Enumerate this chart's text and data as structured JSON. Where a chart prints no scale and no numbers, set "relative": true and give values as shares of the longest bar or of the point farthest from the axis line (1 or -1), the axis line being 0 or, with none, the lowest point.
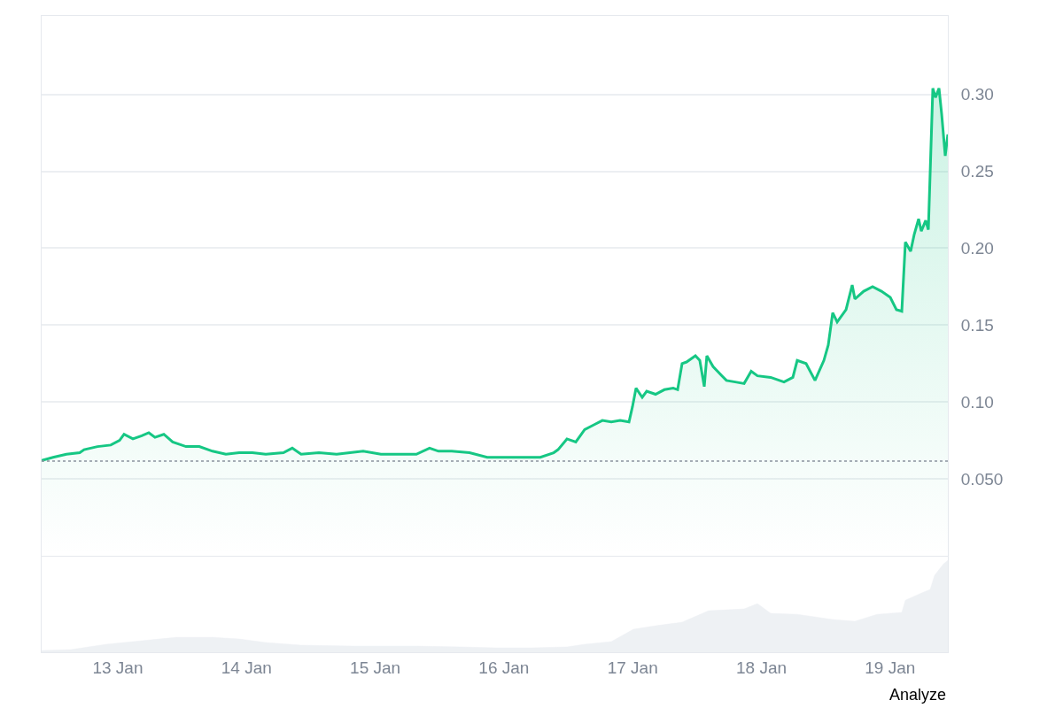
{
  "chart_data": [
    {
      "type": "area",
      "grid": "y",
      "tick_labels": "y",
      "x": [
        "--01-12T09:48",
        "--01-12T11:56",
        "--01-12T14:25",
        "--01-12T16:54",
        "--01-12T17:43",
        "--01-12T20:12",
        "--01-12T22:41",
        "--01-13T00:20",
        "--01-13T01:10",
        "--01-13T02:49",
        "--01-13T04:28",
        "--01-13T05:47",
        "--01-13T06:56",
        "--01-13T08:35",
        "--01-13T10:14",
        "--01-13T12:43",
        "--01-13T15:12",
        "--01-13T17:40",
        "--01-13T20:09",
        "--01-13T22:38",
        "--01-14T01:06",
        "--01-14T03:35",
        "--01-14T06:53",
        "--01-14T08:32",
        "--01-14T10:11",
        "--01-14T13:30",
        "--01-14T16:48",
        "--01-14T19:17",
        "--01-14T21:45",
        "--01-15T01:04",
        "--01-15T04:22",
        "--01-15T07:40",
        "--01-15T10:08",
        "--01-15T11:48",
        "--01-15T14:16",
        "--01-15T17:35",
        "--01-15T20:53",
        "--01-16T00:11",
        "--01-16T03:29",
        "--01-16T06:47",
        "--01-16T09:16",
        "--01-16T10:05",
        "--01-16T11:45",
        "--01-16T13:24",
        "--01-16T15:03",
        "--01-16T16:42",
        "--01-16T18:21",
        "--01-16T20:01",
        "--01-16T21:40",
        "--01-16T23:19",
        "--01-16T23:58",
        "--01-17T00:38",
        "--01-17T01:47",
        "--01-17T02:37",
        "--01-17T04:16",
        "--01-17T05:55",
        "--01-17T07:34",
        "--01-17T08:23",
        "--01-17T09:13",
        "--01-17T10:03",
        "--01-17T11:42",
        "--01-17T12:31",
        "--01-17T13:21",
        "--01-17T13:50",
        "--01-17T15:00",
        "--01-17T16:39",
        "--01-17T17:29",
        "--01-17T19:08",
        "--01-17T20:47",
        "--01-17T22:06",
        "--01-17T23:16",
        "--01-18T01:44",
        "--01-18T04:13",
        "--01-18T05:52",
        "--01-18T06:41",
        "--01-18T08:20",
        "--01-18T10:00",
        "--01-18T11:39",
        "--01-18T12:28",
        "--01-18T13:18",
        "--01-18T14:08",
        "--01-18T15:47",
        "--01-18T16:56",
        "--01-18T17:26",
        "--01-18T19:05",
        "--01-18T20:44",
        "--01-18T22:23",
        "--01-19T00:02",
        "--01-19T01:11",
        "--01-19T02:11",
        "--01-19T02:51",
        "--01-19T03:50",
        "--01-19T04:30",
        "--01-19T05:19",
        "--01-19T05:49",
        "--01-19T06:38",
        "--01-19T07:08",
        "--01-19T07:58",
        "--01-19T08:28",
        "--01-19T09:07",
        "--01-19T09:37",
        "--01-19T10:17",
        "--01-19T10:46"
      ],
      "series": [
        {
          "color": "#16c784",
          "values": [
            0.062,
            0.064,
            0.066,
            0.067,
            0.069,
            0.071,
            0.072,
            0.075,
            0.079,
            0.076,
            0.078,
            0.08,
            0.077,
            0.079,
            0.074,
            0.071,
            0.071,
            0.068,
            0.066,
            0.067,
            0.067,
            0.066,
            0.067,
            0.07,
            0.066,
            0.067,
            0.066,
            0.067,
            0.068,
            0.066,
            0.066,
            0.066,
            0.07,
            0.068,
            0.068,
            0.067,
            0.064,
            0.064,
            0.064,
            0.064,
            0.067,
            0.069,
            0.076,
            0.074,
            0.082,
            0.085,
            0.088,
            0.087,
            0.088,
            0.087,
            0.097,
            0.109,
            0.103,
            0.107,
            0.105,
            0.108,
            0.109,
            0.108,
            0.125,
            0.126,
            0.13,
            0.127,
            0.11,
            0.13,
            0.123,
            0.117,
            0.114,
            0.113,
            0.112,
            0.12,
            0.117,
            0.116,
            0.113,
            0.116,
            0.127,
            0.125,
            0.114,
            0.127,
            0.137,
            0.158,
            0.152,
            0.16,
            0.176,
            0.167,
            0.172,
            0.175,
            0.172,
            0.168,
            0.16,
            0.159,
            0.204,
            0.198,
            0.209,
            0.219,
            0.211,
            0.218,
            0.212,
            0.304,
            0.298,
            0.304,
            0.287,
            0.26,
            0.274
          ]
        }
      ],
      "xlim": [
        "--01-12T09:48",
        "--01-19T10:46"
      ],
      "ylim": [
        0,
        0.351
      ],
      "yticks": [
        {
          "value": 0,
          "label": null
        },
        {
          "value": 0.05,
          "label": "0.050"
        },
        {
          "value": 0.1,
          "label": "0.10"
        },
        {
          "value": 0.15,
          "label": "0.15"
        },
        {
          "value": 0.2,
          "label": "0.20"
        },
        {
          "value": 0.25,
          "label": "0.25"
        },
        {
          "value": 0.3,
          "label": "0.30"
        }
      ],
      "ref_lines": [
        {
          "axis": "y",
          "value": 0.0615,
          "color": "#8a939f",
          "line_style": "dotted"
        }
      ]
    },
    {
      "type": "area",
      "relative": true,
      "tick_labels": "x",
      "x": [
        "--01-12T09:48",
        "--01-12T15:15",
        "--01-12T21:51",
        "--01-13T04:28",
        "--01-13T11:04",
        "--01-13T17:40",
        "--01-13T22:38",
        "--01-14T03:35",
        "--01-14T10:11",
        "--01-14T20:06",
        "--01-15T07:40",
        "--01-15T15:55",
        "--01-15T22:32",
        "--01-16T05:08",
        "--01-16T11:45",
        "--01-16T15:03",
        "--01-16T20:01",
        "--01-17T00:08",
        "--01-17T04:16",
        "--01-17T09:13",
        "--01-17T14:10",
        "--01-17T20:47",
        "--01-17T23:16",
        "--01-18T01:44",
        "--01-18T06:41",
        "--01-18T13:18",
        "--01-18T17:26",
        "--01-18T21:34",
        "--01-19T02:11",
        "--01-19T02:51",
        "--01-19T05:49",
        "--01-19T07:28",
        "--01-19T08:18",
        "--01-19T09:57",
        "--01-19T10:46"
      ],
      "series": [
        {
          "color": "#eef1f4",
          "values": [
            0.019,
            0.029,
            0.087,
            0.125,
            0.163,
            0.163,
            0.144,
            0.106,
            0.077,
            0.067,
            0.067,
            0.058,
            0.048,
            0.048,
            0.058,
            0.087,
            0.115,
            0.25,
            0.288,
            0.327,
            0.452,
            0.471,
            0.529,
            0.423,
            0.413,
            0.356,
            0.337,
            0.413,
            0.433,
            0.567,
            0.644,
            0.683,
            0.837,
            0.962,
            1
          ]
        }
      ],
      "xlim": [
        "--01-12T09:48",
        "--01-19T10:46"
      ],
      "xticks": [
        {
          "value": "--01-13",
          "label": "13 Jan"
        },
        {
          "value": "--01-14",
          "label": "14 Jan"
        },
        {
          "value": "--01-15",
          "label": "15 Jan"
        },
        {
          "value": "--01-16",
          "label": "16 Jan"
        },
        {
          "value": "--01-17",
          "label": "17 Jan"
        },
        {
          "value": "--01-18",
          "label": "18 Jan"
        },
        {
          "value": "--01-19",
          "label": "19 Jan"
        }
      ],
      "annotations": [
        "Analyze"
      ]
    }
  ]
}
